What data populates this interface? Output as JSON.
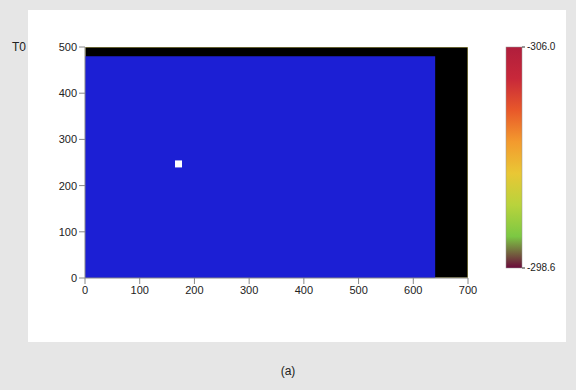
{
  "chart_data": {
    "type": "heatmap",
    "title": "T0",
    "caption": "(a)",
    "xlim": [
      0,
      700
    ],
    "xticks": [
      0,
      100,
      200,
      300,
      400,
      500,
      600,
      700
    ],
    "ylim": [
      0,
      500
    ],
    "yticks": [
      0,
      100,
      200,
      300,
      400,
      500
    ],
    "image_size": [
      640,
      480
    ],
    "color": "#1c1fd4",
    "hot_spot": {
      "x": 170,
      "y": 248,
      "color": "#ffffff"
    },
    "colorbar": {
      "range": [
        -298.6,
        -306.0
      ],
      "ticks": [
        {
          "value": -306.0,
          "label": "-306.0"
        },
        -298.6
      ],
      "colors": [
        "#6b0a3a",
        "#7cc843",
        "#b9d33c",
        "#e9c735",
        "#f39a2e",
        "#e8582a",
        "#c8283a",
        "#b01e3c"
      ]
    }
  }
}
